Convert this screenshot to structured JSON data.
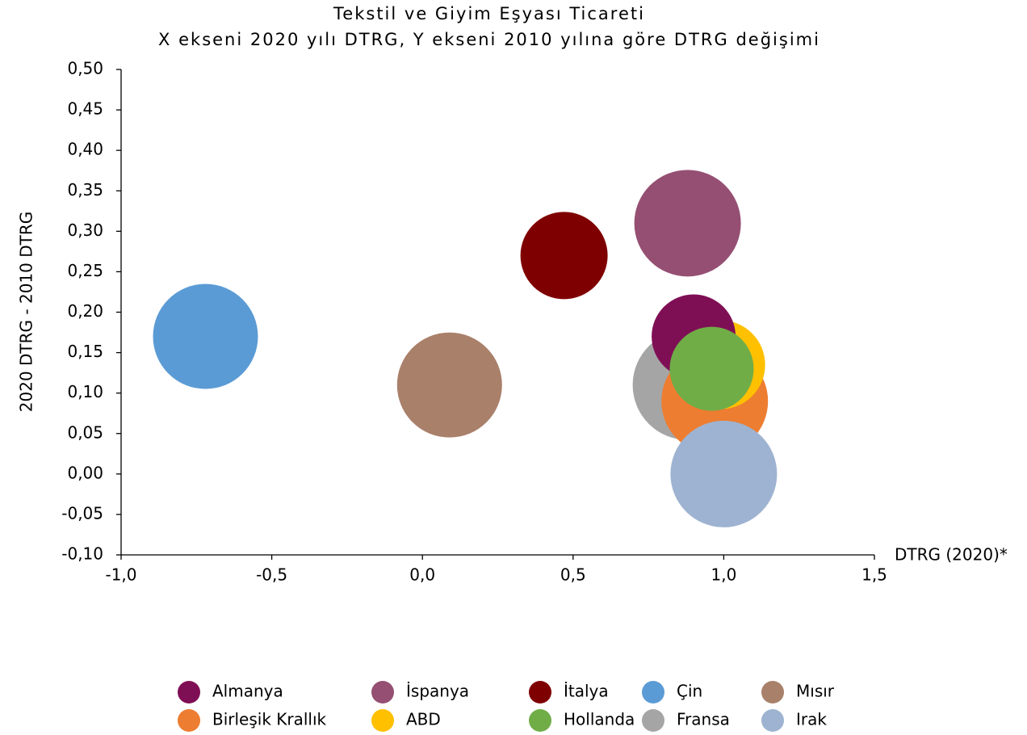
{
  "chart_data": {
    "type": "bubble",
    "title": "Tekstil ve Giyim Eşyası Ticareti",
    "subtitle": "X ekseni 2020 yılı DTRG, Y ekseni 2010 yılına göre DTRG değişimi",
    "x_label": "DTRG (2020)*",
    "y_label": "2020 DTRG - 2010 DTRG",
    "xlim": [
      -1.0,
      1.5
    ],
    "xticks": [
      {
        "value": -1.0,
        "label": "-1,0"
      },
      {
        "value": -0.5,
        "label": "-0,5"
      },
      {
        "value": 0.0,
        "label": "0,0"
      },
      {
        "value": 0.5,
        "label": "0,5"
      },
      {
        "value": 1.0,
        "label": "1,0"
      },
      {
        "value": 1.5,
        "label": "1,5"
      }
    ],
    "ylim": [
      -0.1,
      0.5
    ],
    "yticks": [
      {
        "value": 0.5,
        "label": "0,50"
      },
      {
        "value": 0.45,
        "label": "0,45"
      },
      {
        "value": 0.4,
        "label": "0,40"
      },
      {
        "value": 0.35,
        "label": "0,35"
      },
      {
        "value": 0.3,
        "label": "0,30"
      },
      {
        "value": 0.25,
        "label": "0,25"
      },
      {
        "value": 0.2,
        "label": "0,20"
      },
      {
        "value": 0.15,
        "label": "0,15"
      },
      {
        "value": 0.1,
        "label": "0,10"
      },
      {
        "value": 0.05,
        "label": "0,05"
      },
      {
        "value": 0.0,
        "label": "0,00"
      },
      {
        "value": -0.05,
        "label": "-0,05"
      },
      {
        "value": -0.1,
        "label": "-0,10"
      }
    ],
    "grid": false,
    "legend": "bottom",
    "series": [
      {
        "name": "Almanya",
        "color": "#7f0f55",
        "x": 0.9,
        "y": 0.17,
        "size": 52
      },
      {
        "name": "İspanya",
        "color": "#954f72",
        "x": 0.88,
        "y": 0.31,
        "size": 66
      },
      {
        "name": "İtalya",
        "color": "#7f0000",
        "x": 0.47,
        "y": 0.27,
        "size": 54
      },
      {
        "name": "Çin",
        "color": "#5b9bd5",
        "x": -0.72,
        "y": 0.17,
        "size": 65
      },
      {
        "name": "Mısır",
        "color": "#a9806a",
        "x": 0.09,
        "y": 0.11,
        "size": 65
      },
      {
        "name": "Birleşik Krallık",
        "color": "#ed7d31",
        "x": 0.97,
        "y": 0.09,
        "size": 66
      },
      {
        "name": "ABD",
        "color": "#ffc000",
        "x": 0.99,
        "y": 0.135,
        "size": 55
      },
      {
        "name": "Hollanda",
        "color": "#70ad47",
        "x": 0.96,
        "y": 0.13,
        "size": 52
      },
      {
        "name": "Fransa",
        "color": "#a5a5a5",
        "x": 0.88,
        "y": 0.11,
        "size": 68
      },
      {
        "name": "Irak",
        "color": "#9eb3d1",
        "x": 1.0,
        "y": 0.0,
        "size": 66
      }
    ]
  }
}
